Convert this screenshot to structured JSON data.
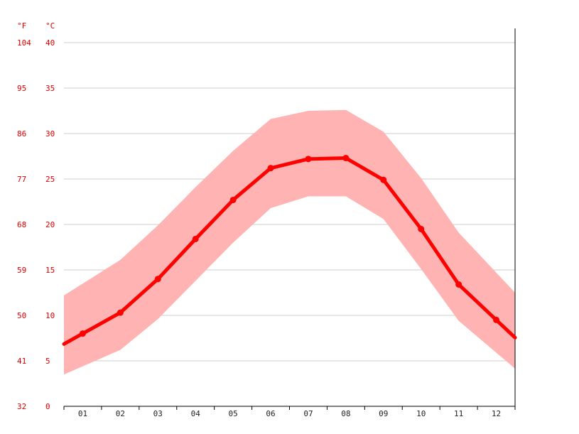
{
  "chart_data": {
    "type": "line",
    "categories": [
      "01",
      "02",
      "03",
      "04",
      "05",
      "06",
      "07",
      "08",
      "09",
      "10",
      "11",
      "12"
    ],
    "y_unit_left": "°F",
    "y_unit_right": "°C",
    "y_ticks_c": [
      0,
      5,
      10,
      15,
      20,
      25,
      30,
      35,
      40
    ],
    "y_ticks_f": [
      32,
      41,
      50,
      59,
      68,
      77,
      86,
      95,
      104
    ],
    "ylim_c": [
      0,
      40
    ],
    "grid": true,
    "series": [
      {
        "values": [
          8.0,
          10.3,
          14.0,
          18.4,
          22.7,
          26.2,
          27.2,
          27.3,
          24.9,
          19.5,
          13.4,
          9.5
        ]
      }
    ],
    "band": {
      "low": [
        4.4,
        6.2,
        9.6,
        13.8,
        18.0,
        21.8,
        23.1,
        23.1,
        20.6,
        15.1,
        9.4,
        5.9
      ],
      "high": [
        13.5,
        16.1,
        19.9,
        24.1,
        28.1,
        31.6,
        32.5,
        32.6,
        30.2,
        25.1,
        19.1,
        14.7
      ]
    },
    "colors": {
      "line": "#ff0000",
      "band": "#ffb3b3",
      "grid": "#cccccc",
      "axis_text": "#e00000"
    }
  }
}
